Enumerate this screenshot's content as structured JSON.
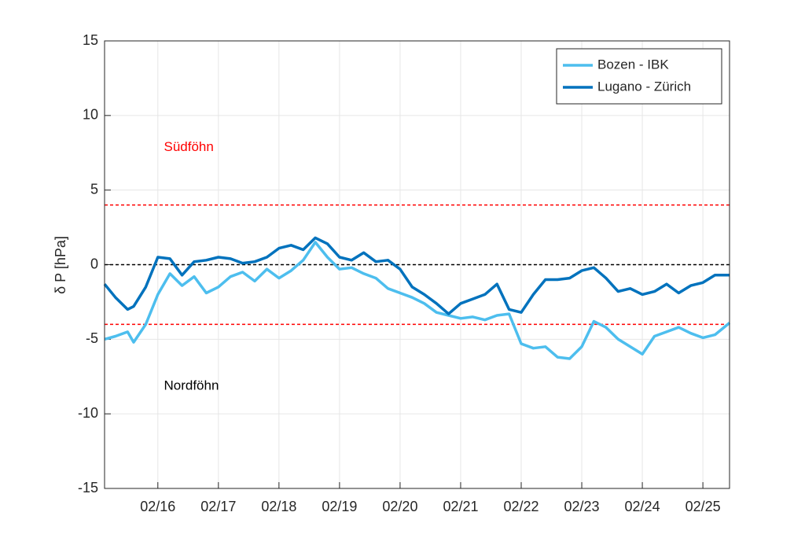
{
  "chart_data": {
    "type": "line",
    "y_label": "δ P [hPa]",
    "x": [
      15.12,
      15.3,
      15.5,
      15.6,
      15.8,
      16.0,
      16.2,
      16.4,
      16.6,
      16.8,
      17.0,
      17.2,
      17.4,
      17.6,
      17.8,
      18.0,
      18.2,
      18.4,
      18.6,
      18.8,
      19.0,
      19.2,
      19.4,
      19.6,
      19.8,
      20.0,
      20.2,
      20.4,
      20.6,
      20.8,
      21.0,
      21.2,
      21.4,
      21.6,
      21.8,
      22.0,
      22.2,
      22.4,
      22.6,
      22.8,
      23.0,
      23.2,
      23.4,
      23.6,
      23.8,
      24.0,
      24.2,
      24.4,
      24.6,
      24.8,
      25.0,
      25.2,
      25.44
    ],
    "series": [
      {
        "name": "Bozen - IBK",
        "color": "#4dbeee",
        "values": [
          -5.0,
          -4.8,
          -4.5,
          -5.2,
          -4.0,
          -2.0,
          -0.6,
          -1.4,
          -0.8,
          -1.9,
          -1.5,
          -0.8,
          -0.5,
          -1.1,
          -0.3,
          -0.9,
          -0.4,
          0.3,
          1.5,
          0.5,
          -0.3,
          -0.2,
          -0.6,
          -0.9,
          -1.6,
          -1.9,
          -2.2,
          -2.6,
          -3.2,
          -3.4,
          -3.6,
          -3.5,
          -3.7,
          -3.4,
          -3.3,
          -5.3,
          -5.6,
          -5.5,
          -6.2,
          -6.3,
          -5.5,
          -3.8,
          -4.2,
          -5.0,
          -5.5,
          -6.0,
          -4.8,
          -4.5,
          -4.2,
          -4.6,
          -4.9,
          -4.7,
          -3.9
        ]
      },
      {
        "name": "Lugano - Zürich",
        "color": "#0072bd",
        "values": [
          -1.3,
          -2.2,
          -3.0,
          -2.8,
          -1.5,
          0.5,
          0.4,
          -0.7,
          0.2,
          0.3,
          0.5,
          0.4,
          0.1,
          0.2,
          0.5,
          1.1,
          1.3,
          1.0,
          1.8,
          1.4,
          0.5,
          0.3,
          0.8,
          0.2,
          0.3,
          -0.3,
          -1.5,
          -2.0,
          -2.6,
          -3.3,
          -2.6,
          -2.3,
          -2.0,
          -1.3,
          -3.0,
          -3.2,
          -2.0,
          -1.0,
          -1.0,
          -0.9,
          -0.4,
          -0.2,
          -0.9,
          -1.8,
          -1.6,
          -2.0,
          -1.8,
          -1.3,
          -1.9,
          -1.4,
          -1.2,
          -0.7,
          -0.7
        ]
      }
    ],
    "xlim": [
      15.12,
      25.44
    ],
    "xticks": [
      {
        "value": 16,
        "label": "02/16"
      },
      {
        "value": 17,
        "label": "02/17"
      },
      {
        "value": 18,
        "label": "02/18"
      },
      {
        "value": 19,
        "label": "02/19"
      },
      {
        "value": 20,
        "label": "02/20"
      },
      {
        "value": 21,
        "label": "02/21"
      },
      {
        "value": 22,
        "label": "02/22"
      },
      {
        "value": 23,
        "label": "02/23"
      },
      {
        "value": 24,
        "label": "02/24"
      },
      {
        "value": 25,
        "label": "02/25"
      }
    ],
    "ylim": [
      -15,
      15
    ],
    "yticks": [
      -15,
      -10,
      -5,
      0,
      5,
      10,
      15
    ],
    "hlines": [
      {
        "value": 4,
        "color": "#ff0000"
      },
      {
        "value": -4,
        "color": "#ff0000"
      },
      {
        "value": 0,
        "color": "#000000"
      }
    ],
    "annotations": [
      {
        "text": "Südföhn",
        "x": 16.1,
        "y": 7.85,
        "color": "#ff0000"
      },
      {
        "text": "Nordföhn",
        "x": 16.1,
        "y": -8.15,
        "color": "#000000"
      }
    ],
    "grid": true,
    "legend": "northeast"
  }
}
